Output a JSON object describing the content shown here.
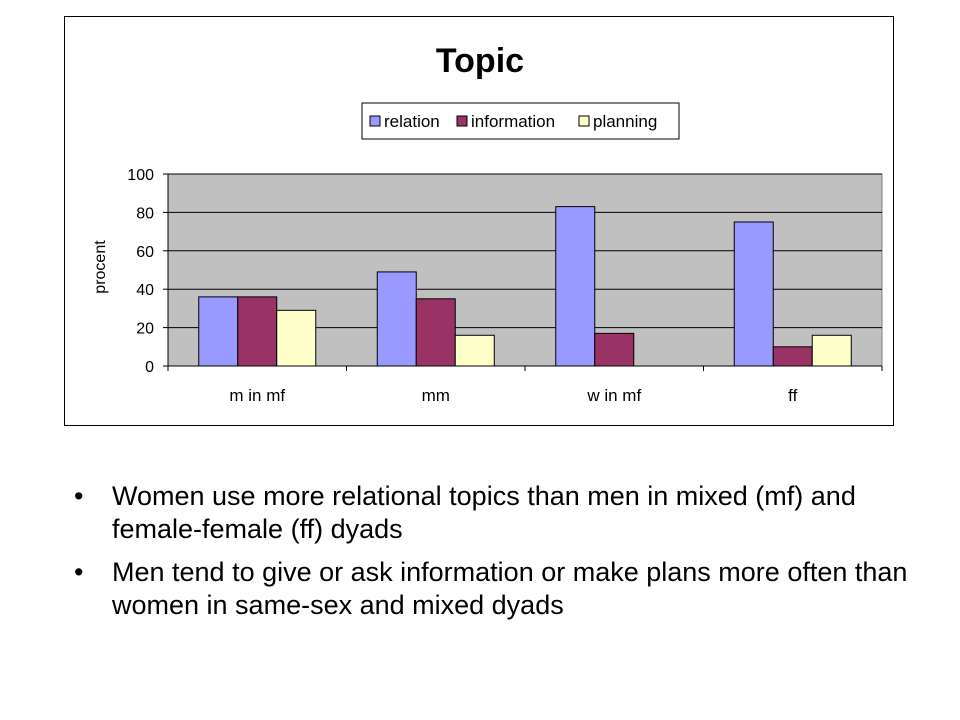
{
  "chart_data": {
    "type": "bar",
    "title": "Topic",
    "xlabel": "",
    "ylabel": "procent",
    "ylim": [
      0,
      100
    ],
    "yticks": [
      0,
      20,
      40,
      60,
      80,
      100
    ],
    "grid": true,
    "legend_position": "top",
    "categories": [
      "m in mf",
      "mm",
      "w in mf",
      "ff"
    ],
    "series": [
      {
        "name": "relation",
        "color": "#9999ff",
        "values": [
          36,
          49,
          83,
          75
        ]
      },
      {
        "name": "information",
        "color": "#993366",
        "values": [
          36,
          35,
          17,
          10
        ]
      },
      {
        "name": "planning",
        "color": "#ffffcc",
        "values": [
          29,
          16,
          0,
          16
        ]
      }
    ],
    "plot_background": "#c0c0c0"
  },
  "bullets": [
    "Women use more relational topics than men in mixed (mf) and female-female (ff) dyads",
    "Men tend to give or ask information or make plans more often than women in same-sex and mixed dyads"
  ],
  "bullet_symbol": "•"
}
